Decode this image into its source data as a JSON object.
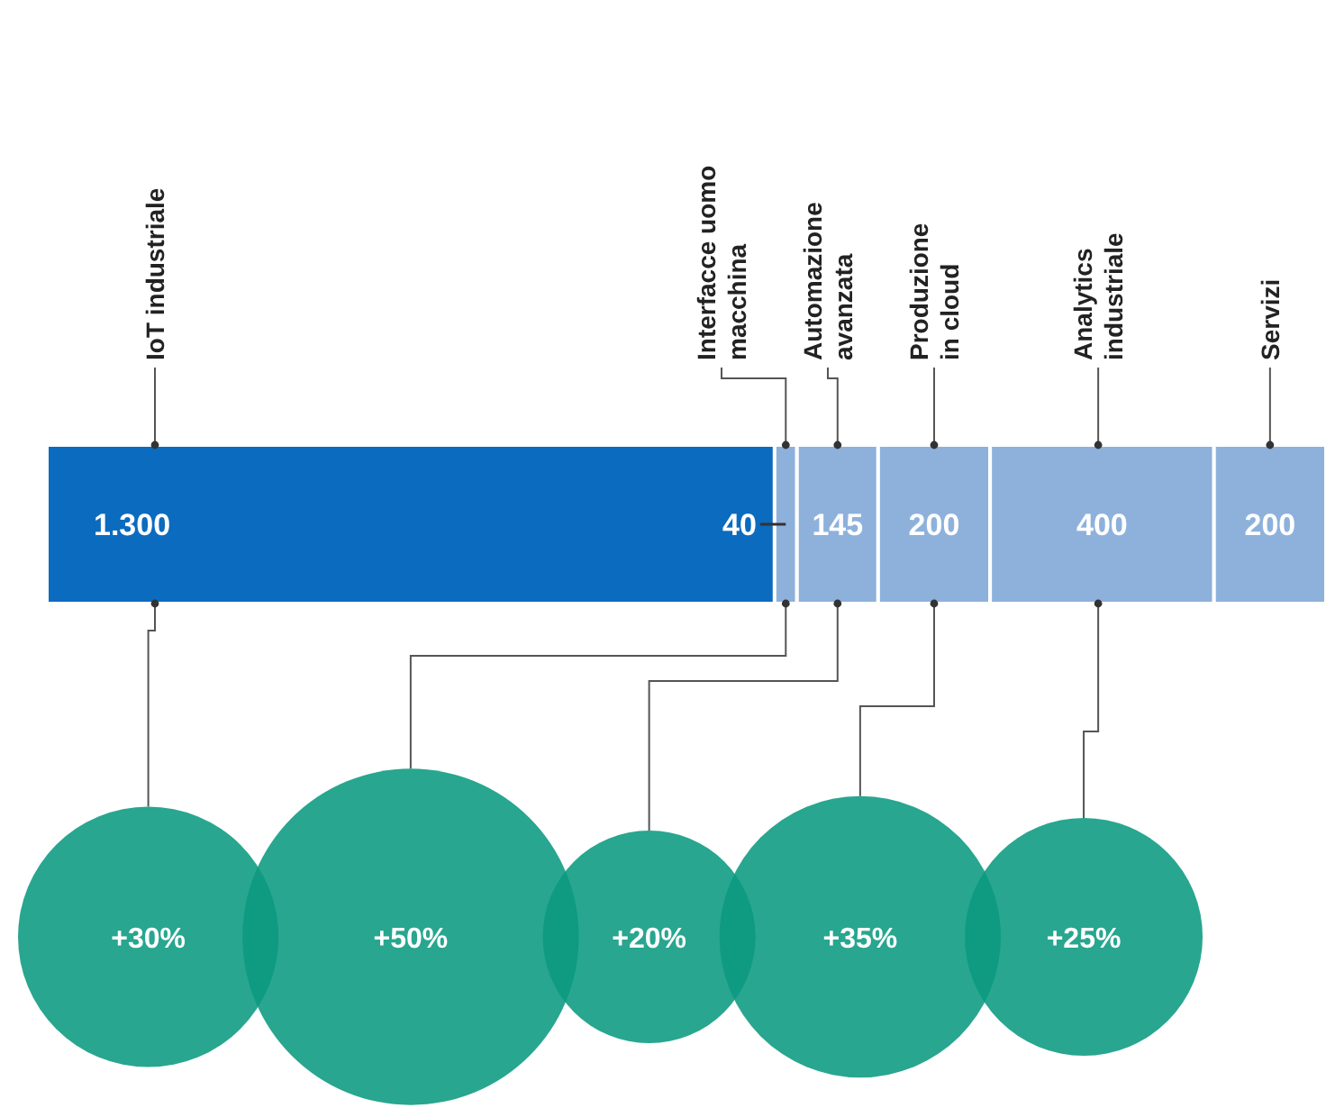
{
  "chart_data": [
    {
      "type": "bar",
      "orientation": "horizontal",
      "stacked": true,
      "legend": false,
      "data_labels": true,
      "categories": [
        null
      ],
      "series": [
        {
          "name": "IoT industriale",
          "color": "#0b6bbf",
          "values": [
            1300
          ],
          "value_labels": [
            "1.300"
          ]
        },
        {
          "name": "Interfacce uomo\nmacchina",
          "color": "#8eb1dc",
          "values": [
            40
          ],
          "value_labels": [
            "40"
          ]
        },
        {
          "name": "Automazione\navanzata",
          "color": "#8eb1dc",
          "values": [
            145
          ],
          "value_labels": [
            "145"
          ]
        },
        {
          "name": "Produzione\nin cloud",
          "color": "#8eb1dc",
          "values": [
            200
          ],
          "value_labels": [
            "200"
          ]
        },
        {
          "name": "Analytics\nindustriale",
          "color": "#8eb1dc",
          "values": [
            400
          ],
          "value_labels": [
            "400"
          ]
        },
        {
          "name": "Servizi",
          "color": "#8eb1dc",
          "values": [
            200
          ],
          "value_labels": [
            "200"
          ]
        }
      ]
    },
    {
      "type": "other",
      "categories": [
        null,
        null,
        null,
        null,
        null
      ],
      "values": [
        30,
        50,
        20,
        35,
        25
      ],
      "value_labels": [
        "+30%",
        "+50%",
        "+20%",
        "+35%",
        "+25%"
      ],
      "color": "#0a9a80"
    }
  ]
}
